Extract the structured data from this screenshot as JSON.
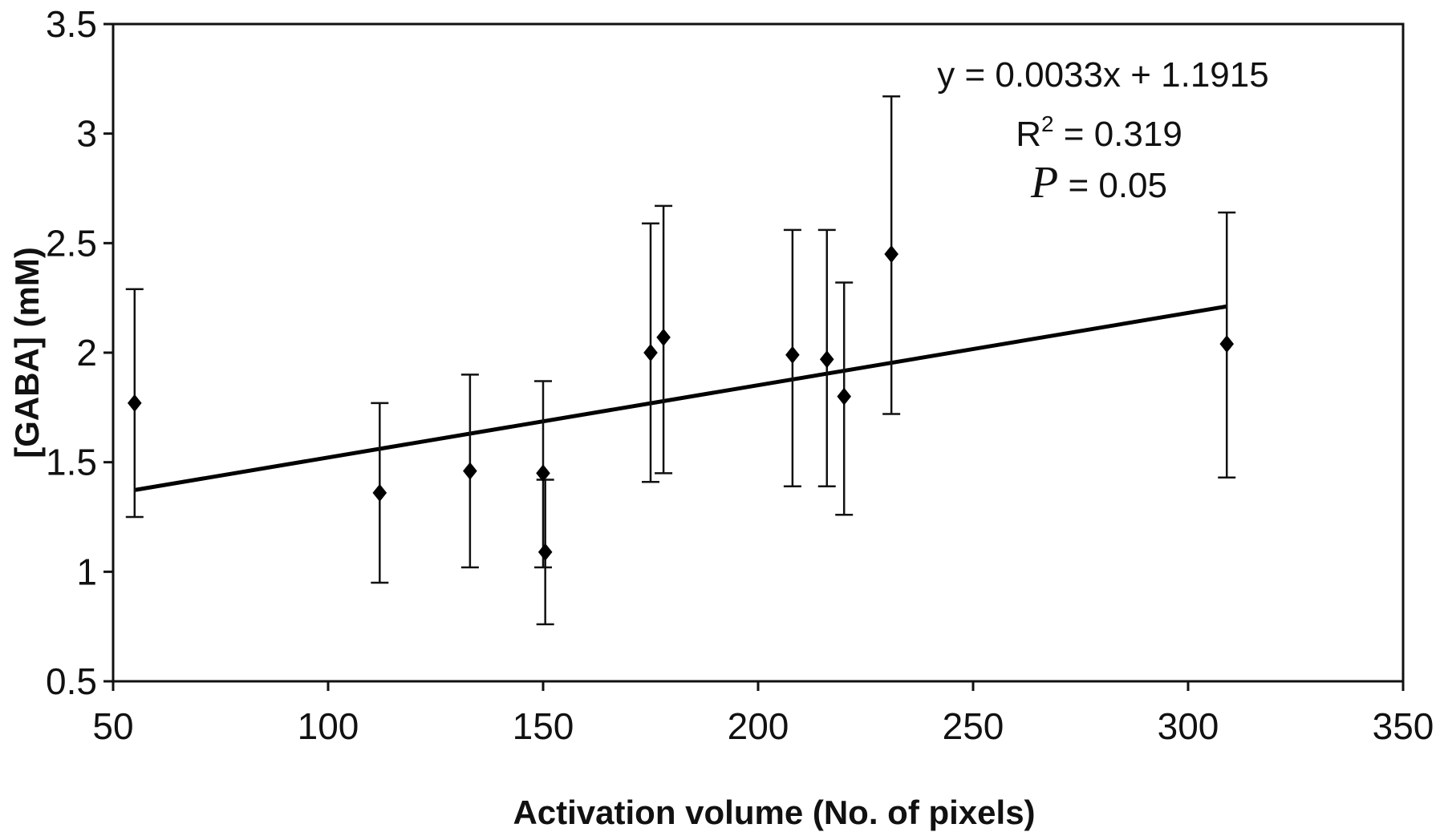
{
  "chart_data": {
    "type": "scatter",
    "title": "",
    "xlabel": "Activation volume (No. of pixels)",
    "ylabel": "[GABA] (mM)",
    "xlim": [
      50,
      350
    ],
    "ylim": [
      0.5,
      3.5
    ],
    "x_ticks": [
      "50",
      "100",
      "150",
      "200",
      "250",
      "300",
      "350"
    ],
    "y_ticks": [
      "0.5",
      "1",
      "1.5",
      "2",
      "2.5",
      "3",
      "3.5"
    ],
    "grid": false,
    "legend": "none",
    "marker": "diamond",
    "color": "#000000",
    "points": [
      {
        "x": 55,
        "y": 1.77,
        "err_low": 1.25,
        "err_high": 2.29
      },
      {
        "x": 112,
        "y": 1.36,
        "err_low": 0.95,
        "err_high": 1.77
      },
      {
        "x": 133,
        "y": 1.46,
        "err_low": 1.02,
        "err_high": 1.9
      },
      {
        "x": 150,
        "y": 1.45,
        "err_low": 1.02,
        "err_high": 1.87
      },
      {
        "x": 150.5,
        "y": 1.09,
        "err_low": 0.76,
        "err_high": 1.42
      },
      {
        "x": 175,
        "y": 2.0,
        "err_low": 1.41,
        "err_high": 2.59
      },
      {
        "x": 178,
        "y": 2.07,
        "err_low": 1.45,
        "err_high": 2.67
      },
      {
        "x": 208,
        "y": 1.99,
        "err_low": 1.39,
        "err_high": 2.56
      },
      {
        "x": 216,
        "y": 1.97,
        "err_low": 1.39,
        "err_high": 2.56
      },
      {
        "x": 220,
        "y": 1.8,
        "err_low": 1.26,
        "err_high": 2.32
      },
      {
        "x": 231,
        "y": 2.45,
        "err_low": 1.72,
        "err_high": 3.17
      },
      {
        "x": 309,
        "y": 2.04,
        "err_low": 1.43,
        "err_high": 2.64
      }
    ],
    "trendline": {
      "slope": 0.0033,
      "intercept": 1.1915,
      "x_range": [
        55,
        309
      ]
    },
    "annotations": {
      "equation": "y = 0.0033x + 1.1915",
      "r2_prefix": "R",
      "r2_sup": "2",
      "r2_value": " = 0.319",
      "p_symbol": "P",
      "p_value": " = 0.05"
    }
  }
}
